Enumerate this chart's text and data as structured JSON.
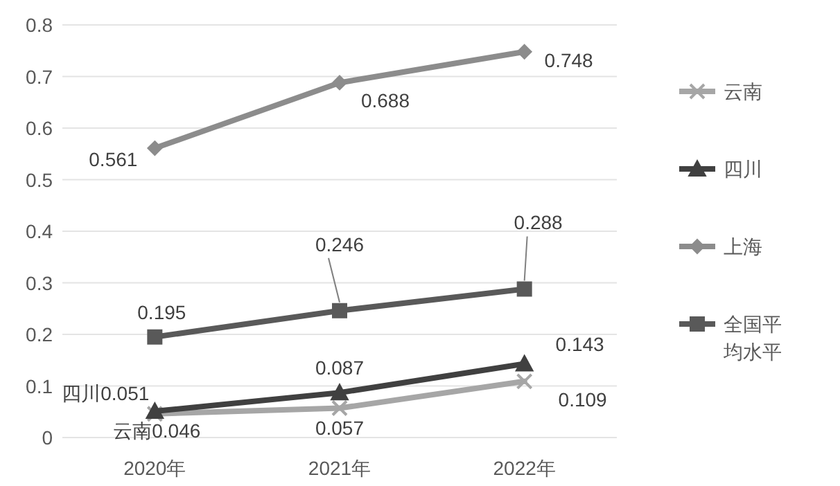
{
  "chart_data": {
    "type": "line",
    "categories": [
      "2020年",
      "2021年",
      "2022年"
    ],
    "series": [
      {
        "name": "云南",
        "color": "#a6a6a6",
        "marker": "cross",
        "values": [
          0.046,
          0.057,
          0.109
        ],
        "value_labels": [
          "云南0.046",
          "0.057",
          "0.109"
        ]
      },
      {
        "name": "四川",
        "color": "#404040",
        "marker": "triangle",
        "values": [
          0.051,
          0.087,
          0.143
        ],
        "value_labels": [
          "四川0.051",
          "0.087",
          "0.143"
        ]
      },
      {
        "name": "上海",
        "color": "#8c8c8c",
        "marker": "diamond",
        "values": [
          0.561,
          0.688,
          0.748
        ],
        "value_labels": [
          "0.561",
          "0.688",
          "0.748"
        ]
      },
      {
        "name": "全国平均水平",
        "color": "#595959",
        "marker": "square",
        "values": [
          0.195,
          0.246,
          0.288
        ],
        "value_labels": [
          "0.195",
          "0.246",
          "0.288"
        ]
      }
    ],
    "ylim": [
      0,
      0.8
    ],
    "yticks": [
      0,
      0.1,
      0.2,
      0.3,
      0.4,
      0.5,
      0.6,
      0.7,
      0.8
    ],
    "grid": "y",
    "legend": "right"
  }
}
